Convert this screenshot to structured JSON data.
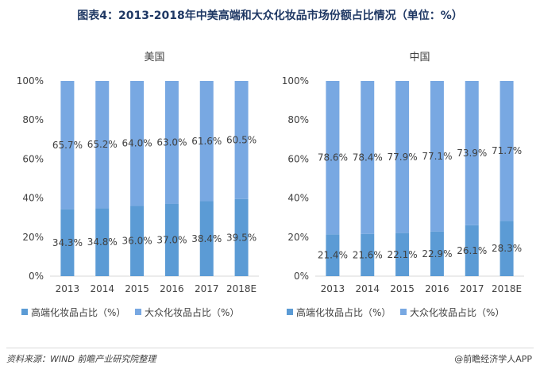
{
  "title": "图表4：2013-2018年中美高端和大众化妆品市场份额占比情况（单位：%）",
  "footer": {
    "source": "资料来源：WIND 前瞻产业研究院整理",
    "brand": "@前瞻经济学人APP"
  },
  "colors": {
    "high_end": "#5b9bd5",
    "mass": "#78a8e2"
  },
  "chart_data": [
    {
      "type": "bar",
      "stacked": true,
      "title": "美国",
      "categories": [
        "2013",
        "2014",
        "2015",
        "2016",
        "2017",
        "2018E"
      ],
      "ylim": [
        0,
        100
      ],
      "yticks": [
        "0%",
        "20%",
        "40%",
        "60%",
        "80%",
        "100%"
      ],
      "legend_position": "bottom",
      "series": [
        {
          "name": "高端化妆品占比（%）",
          "values": [
            34.3,
            34.8,
            36.0,
            37.0,
            38.4,
            39.5
          ],
          "labels": [
            "34.3%",
            "34.8%",
            "36.0%",
            "37.0%",
            "38.4%",
            "39.5%"
          ]
        },
        {
          "name": "大众化妆品占比（%）",
          "values": [
            65.7,
            65.2,
            64.0,
            63.0,
            61.6,
            60.5
          ],
          "labels": [
            "65.7%",
            "65.2%",
            "64.0%",
            "63.0%",
            "61.6%",
            "60.5%"
          ]
        }
      ]
    },
    {
      "type": "bar",
      "stacked": true,
      "title": "中国",
      "categories": [
        "2013",
        "2014",
        "2015",
        "2016",
        "2017",
        "2018E"
      ],
      "ylim": [
        0,
        100
      ],
      "yticks": [
        "0%",
        "20%",
        "40%",
        "60%",
        "80%",
        "100%"
      ],
      "legend_position": "bottom",
      "series": [
        {
          "name": "高端化妆品占比（%）",
          "values": [
            21.4,
            21.6,
            22.1,
            22.9,
            26.1,
            28.3
          ],
          "labels": [
            "21.4%",
            "21.6%",
            "22.1%",
            "22.9%",
            "26.1%",
            "28.3%"
          ]
        },
        {
          "name": "大众化妆品占比（%）",
          "values": [
            78.6,
            78.4,
            77.9,
            77.1,
            73.9,
            71.7
          ],
          "labels": [
            "78.6%",
            "78.4%",
            "77.9%",
            "77.1%",
            "73.9%",
            "71.7%"
          ]
        }
      ]
    }
  ]
}
